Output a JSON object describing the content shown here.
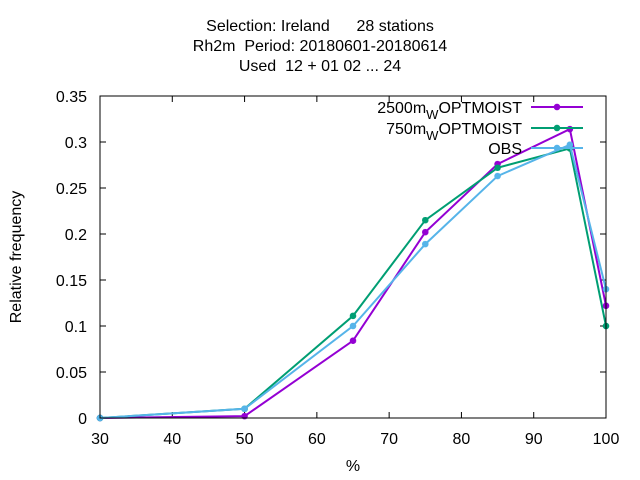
{
  "chart_data": {
    "type": "line",
    "title_lines": [
      "Selection: Ireland      28 stations",
      "Rh2m  Period: 20180601-20180614",
      "Used  12 + 01 02 ... 24"
    ],
    "xlabel": "%",
    "ylabel": "Relative frequency",
    "xlim": [
      30,
      100
    ],
    "ylim": [
      0,
      0.35
    ],
    "xticks": [
      30,
      40,
      50,
      60,
      70,
      80,
      90,
      100
    ],
    "yticks": [
      "0",
      "0.05",
      "0.1",
      "0.15",
      "0.2",
      "0.25",
      "0.3",
      "0.35"
    ],
    "legend_position": "top-right",
    "series": [
      {
        "name": "2500m",
        "name_sub": "W",
        "name_tail": "OPTMOIST",
        "color": "#9400d3",
        "x": [
          30,
          50,
          65,
          75,
          85,
          95,
          100
        ],
        "y": [
          0.0,
          0.002,
          0.084,
          0.202,
          0.276,
          0.314,
          0.122
        ]
      },
      {
        "name": "750m",
        "name_sub": "W",
        "name_tail": "OPTMOIST",
        "color": "#009e73",
        "x": [
          30,
          50,
          65,
          75,
          85,
          95,
          100
        ],
        "y": [
          0.0,
          0.01,
          0.111,
          0.215,
          0.272,
          0.293,
          0.1
        ]
      },
      {
        "name": "OBS",
        "name_sub": "",
        "name_tail": "",
        "color": "#56b4e9",
        "x": [
          30,
          50,
          65,
          75,
          85,
          95,
          100
        ],
        "y": [
          0.0,
          0.01,
          0.1,
          0.189,
          0.263,
          0.297,
          0.14
        ]
      }
    ]
  }
}
